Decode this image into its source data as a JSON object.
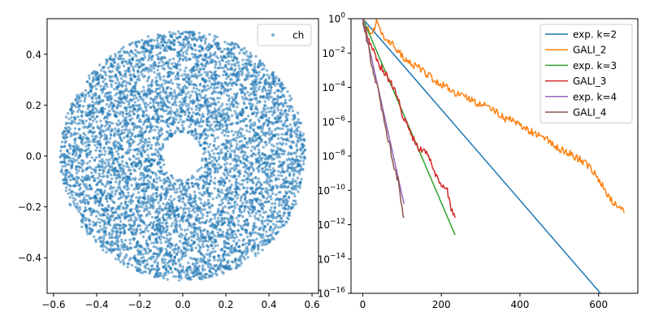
{
  "chart_data": [
    {
      "type": "scatter",
      "xlim": [
        -0.63,
        0.63
      ],
      "ylim": [
        -0.54,
        0.54
      ],
      "x_ticks": [
        -0.6,
        -0.4,
        -0.2,
        0.0,
        0.2,
        0.4,
        0.6
      ],
      "x_tick_labels": [
        "−0.6",
        "−0.4",
        "−0.2",
        "0.0",
        "0.2",
        "0.4",
        "0.6"
      ],
      "y_ticks": [
        -0.4,
        -0.2,
        0.0,
        0.2,
        0.4
      ],
      "y_tick_labels": [
        "−0.4",
        "−0.2",
        "0.0",
        "0.2",
        "0.4"
      ],
      "grid": false,
      "legend": {
        "position": "top-right",
        "entries": [
          {
            "label": "ch",
            "marker": "dot",
            "color": "#1f77b4"
          }
        ]
      },
      "series": [
        {
          "name": "ch",
          "color": "#1f77b4",
          "shape": "annulus",
          "center": [
            0.0,
            0.0
          ],
          "outer_semi_axes": [
            0.57,
            0.49
          ],
          "inner_semi_axes": [
            0.09,
            0.09
          ],
          "approx_point_count": 6000
        }
      ]
    },
    {
      "type": "line",
      "yscale": "log",
      "xlim": [
        -30,
        700
      ],
      "ylim_exponent": [
        -16,
        0
      ],
      "x_ticks": [
        0,
        200,
        400,
        600
      ],
      "x_tick_labels": [
        "0",
        "200",
        "400",
        "600"
      ],
      "y_ticks_exponent": [
        -16,
        -14,
        -12,
        -10,
        -8,
        -6,
        -4,
        -2,
        0
      ],
      "y_tick_labels": [
        {
          "base": "10",
          "exp": "-16"
        },
        {
          "base": "10",
          "exp": "-14"
        },
        {
          "base": "10",
          "exp": "-12"
        },
        {
          "base": "10",
          "exp": "-10"
        },
        {
          "base": "10",
          "exp": "-8"
        },
        {
          "base": "10",
          "exp": "-6"
        },
        {
          "base": "10",
          "exp": "-4"
        },
        {
          "base": "10",
          "exp": "-2"
        },
        {
          "base": "10",
          "exp": "0"
        }
      ],
      "grid": false,
      "legend": {
        "position": "top-right"
      },
      "series": [
        {
          "name": "exp. k=2",
          "color": "#1f77b4",
          "style": "straight",
          "x": [
            0,
            605
          ],
          "log10_y": [
            0,
            -16.0
          ]
        },
        {
          "name": "GALI_2",
          "color": "#ff7f0e",
          "style": "noisy",
          "x": [
            0,
            20,
            35,
            50,
            80,
            100,
            130,
            150,
            180,
            200,
            230,
            260,
            300,
            330,
            360,
            380,
            400,
            430,
            470,
            500,
            530,
            560,
            580,
            600,
            620,
            640,
            660,
            665
          ],
          "log10_y": [
            0,
            -1.0,
            -0.2,
            -1.0,
            -1.6,
            -2.2,
            -2.7,
            -3.0,
            -3.5,
            -3.8,
            -4.3,
            -4.6,
            -5.0,
            -5.2,
            -5.8,
            -5.9,
            -6.3,
            -6.6,
            -7.0,
            -7.6,
            -7.9,
            -8.3,
            -8.7,
            -9.3,
            -10.2,
            -10.8,
            -11.2,
            -11.3
          ]
        },
        {
          "name": "exp. k=3",
          "color": "#2ca02c",
          "style": "straight",
          "x": [
            0,
            235
          ],
          "log10_y": [
            0,
            -12.6
          ]
        },
        {
          "name": "GALI_3",
          "color": "#d62728",
          "style": "noisy",
          "x": [
            0,
            10,
            20,
            30,
            45,
            60,
            80,
            100,
            120,
            140,
            155,
            170,
            185,
            200,
            215,
            225,
            235
          ],
          "log10_y": [
            0,
            -0.9,
            -1.4,
            -2.1,
            -2.8,
            -3.3,
            -4.0,
            -5.5,
            -6.6,
            -7.5,
            -7.6,
            -8.2,
            -9.0,
            -9.6,
            -10.0,
            -11.0,
            -11.6
          ]
        },
        {
          "name": "exp. k=4",
          "color": "#9467bd",
          "style": "straight",
          "x": [
            0,
            105
          ],
          "log10_y": [
            0,
            -10.8
          ]
        },
        {
          "name": "GALI_4",
          "color": "#8c564b",
          "style": "noisy",
          "x": [
            0,
            10,
            20,
            30,
            40,
            50,
            60,
            70,
            80,
            90,
            95,
            100,
            105
          ],
          "log10_y": [
            0,
            -1.2,
            -2.3,
            -3.5,
            -4.3,
            -5.5,
            -6.5,
            -7.6,
            -8.7,
            -9.4,
            -10.3,
            -11.0,
            -11.6
          ]
        }
      ]
    }
  ]
}
